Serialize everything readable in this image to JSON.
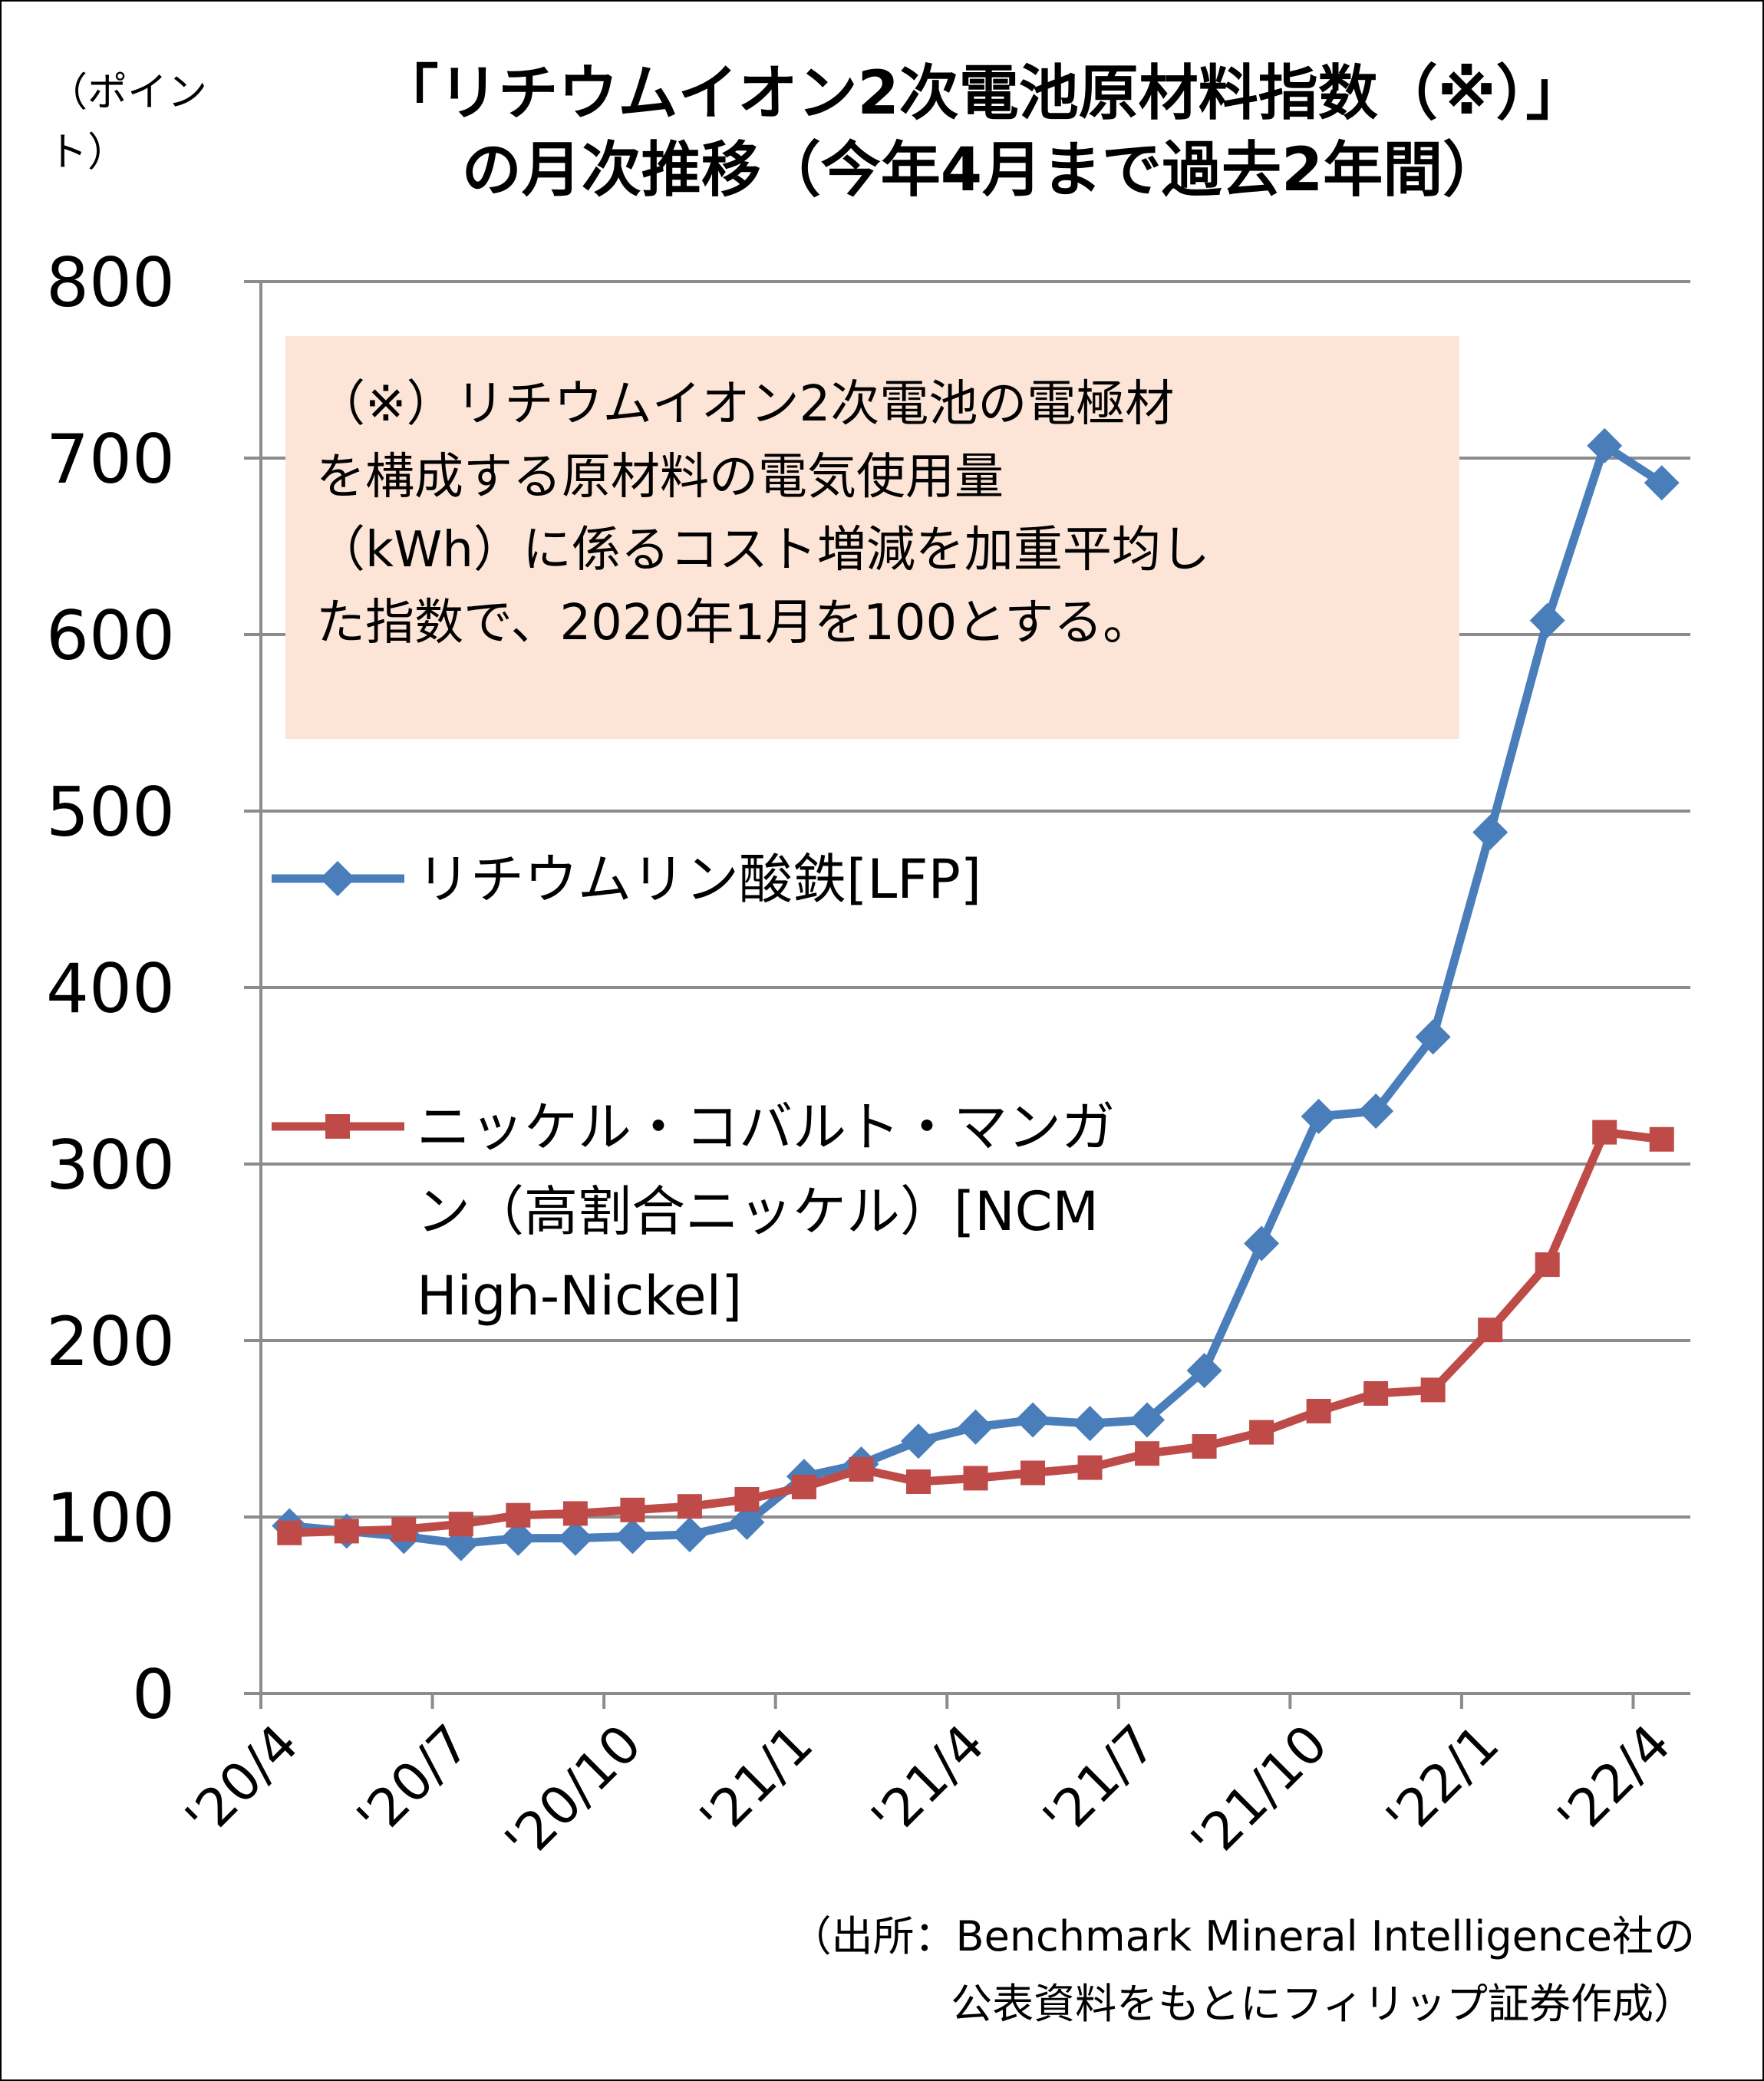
{
  "y_unit": [
    "（ポイン",
    "ト）"
  ],
  "title_lines": [
    "「リチウムイオン2次電池原材料指数（※）」",
    "の月次推移（今年4月まで過去2年間）"
  ],
  "note_lines": [
    "（※）リチウムイオン2次電池の電極材",
    "を構成する原材料の電気使用量",
    "（kWh）に係るコスト増減を加重平均し",
    "た指数で、2020年1月を100とする。"
  ],
  "source_lines": [
    "（出所：Benchmark Mineral Intelligence社の",
    "公表資料をもとにフィリップ証券作成）"
  ],
  "chart_data": {
    "type": "line",
    "title": "「リチウムイオン2次電池原材料指数（※）」の月次推移（今年4月まで過去2年間）",
    "ylabel": "（ポイント）",
    "ylim": [
      0,
      800
    ],
    "yticks": [
      0,
      100,
      200,
      300,
      400,
      500,
      600,
      700,
      800
    ],
    "x": [
      "'20/4",
      "'20/5",
      "'20/6",
      "'20/7",
      "'20/8",
      "'20/9",
      "'20/10",
      "'20/11",
      "'20/12",
      "'21/1",
      "'21/2",
      "'21/3",
      "'21/4",
      "'21/5",
      "'21/6",
      "'21/7",
      "'21/8",
      "'21/9",
      "'21/10",
      "'21/11",
      "'21/12",
      "'22/1",
      "'22/2",
      "'22/3",
      "'22/4"
    ],
    "xtick_labels": [
      "'20/4",
      "'20/7",
      "'20/10",
      "'21/1",
      "'21/4",
      "'21/7",
      "'21/10",
      "'22/1",
      "'22/4"
    ],
    "grid": true,
    "legend": "inside-left",
    "series": [
      {
        "name": "リチウムリン酸鉄[LFP]",
        "legend_lines": [
          "リチウムリン酸鉄[LFP]"
        ],
        "color": "#4a7ebb",
        "marker": "diamond",
        "values": [
          95,
          92,
          89,
          85,
          88,
          88,
          89,
          90,
          97,
          123,
          130,
          143,
          151,
          155,
          153,
          155,
          183,
          255,
          327,
          330,
          372,
          488,
          608,
          707,
          686
        ]
      },
      {
        "name": "ニッケル・コバルト・マンガン（高割合ニッケル）[NCM High-Nickel]",
        "legend_lines": [
          "ニッケル・コバルト・マンガ",
          "ン（高割合ニッケル）[NCM",
          "High-Nickel]"
        ],
        "color": "#be4b48",
        "marker": "square",
        "values": [
          91,
          92,
          93,
          96,
          101,
          102,
          104,
          106,
          110,
          117,
          127,
          120,
          122,
          125,
          128,
          136,
          140,
          148,
          160,
          170,
          172,
          206,
          243,
          318,
          314
        ]
      }
    ]
  }
}
